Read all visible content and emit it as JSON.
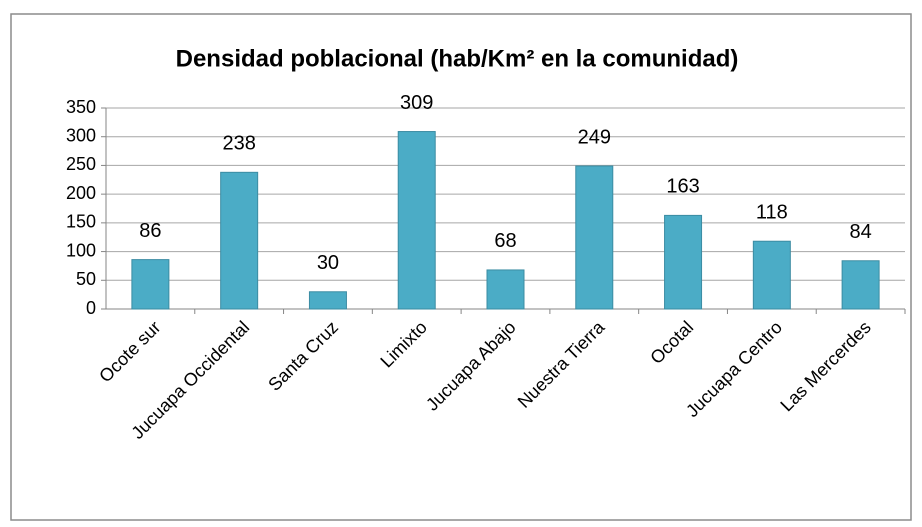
{
  "chart_data": {
    "type": "bar",
    "title": "Densidad poblacional  (hab/Km² en la comunidad)",
    "categories": [
      "Ocote sur",
      "Jucuapa Occidental",
      "Santa Cruz",
      "Limixto",
      "Jucuapa Abajo",
      "Nuestra Tierra",
      "Ocotal",
      "Jucuapa Centro",
      "Las Mercerdes"
    ],
    "values": [
      86,
      238,
      30,
      309,
      68,
      249,
      163,
      118,
      84
    ],
    "color": "#4bacc6",
    "ylim": [
      0,
      350
    ],
    "yticks": [
      0,
      50,
      100,
      150,
      200,
      250,
      300,
      350
    ],
    "grid": true
  }
}
